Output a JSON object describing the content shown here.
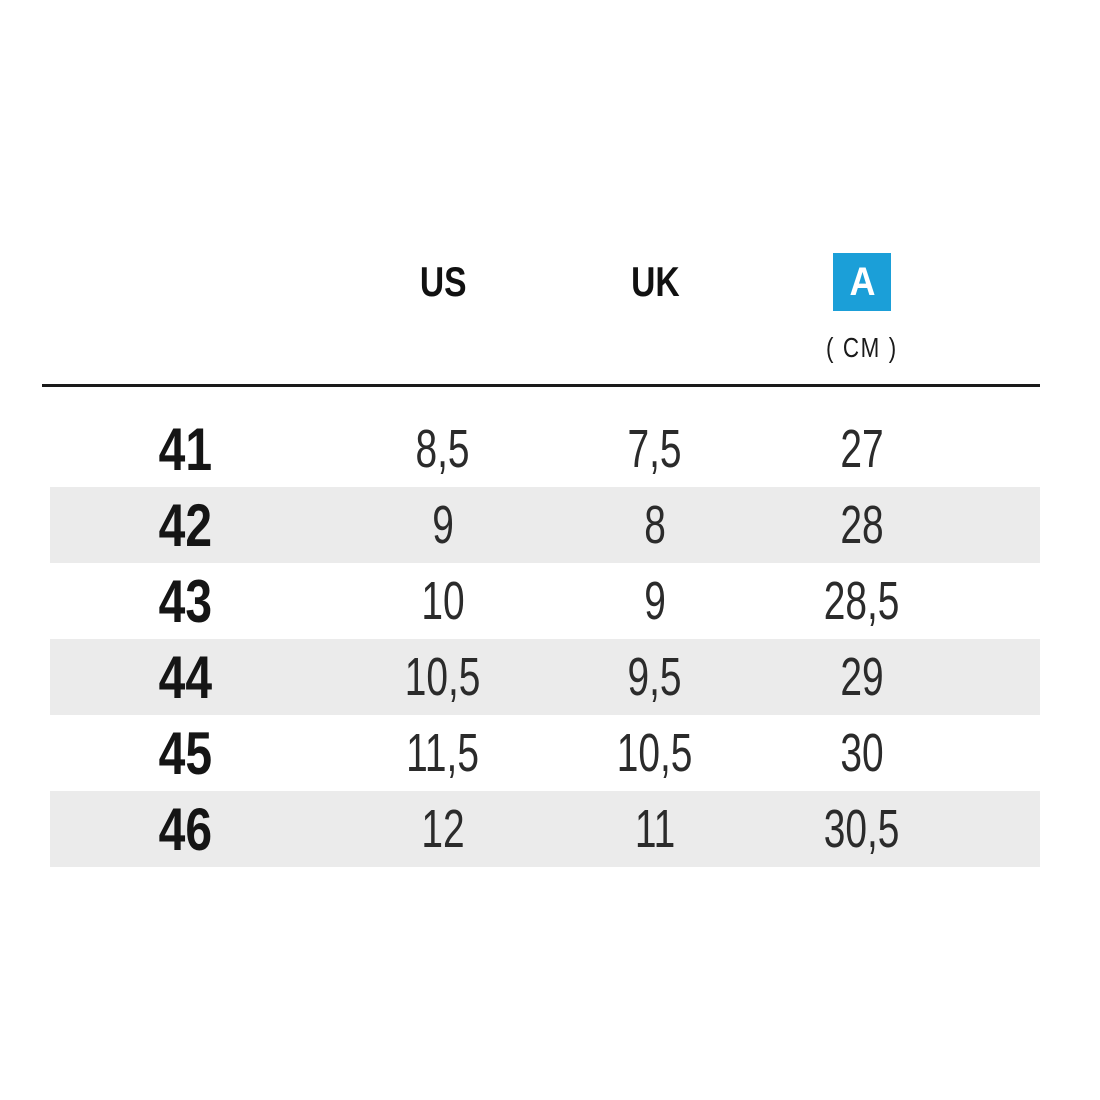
{
  "colors": {
    "accent": "#1b9fd8",
    "stripe": "#ebebeb",
    "divider": "#1a1a1a"
  },
  "header": {
    "badge_label": "A",
    "unit_label": "( CM )"
  },
  "chart_data": {
    "type": "table",
    "columns": [
      "",
      "US",
      "UK",
      "A (CM)"
    ],
    "rows": [
      [
        "41",
        "8,5",
        "7,5",
        "27"
      ],
      [
        "42",
        "9",
        "8",
        "28"
      ],
      [
        "43",
        "10",
        "9",
        "28,5"
      ],
      [
        "44",
        "10,5",
        "9,5",
        "29"
      ],
      [
        "45",
        "11,5",
        "10,5",
        "30"
      ],
      [
        "46",
        "12",
        "11",
        "30,5"
      ]
    ],
    "layout": {
      "striped_rows": [
        "42",
        "44",
        "46"
      ],
      "first_column_header_blank": true,
      "badge_column_note": "blue square badge labelled A with ( CM ) unit below"
    }
  }
}
